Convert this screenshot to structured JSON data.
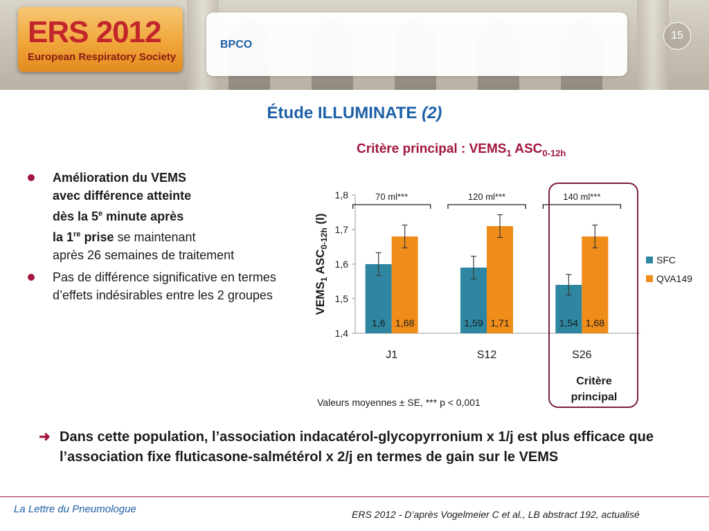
{
  "header": {
    "logo_title": "ERS 2012",
    "logo_subtitle": "European Respiratory Society",
    "section_label": "BPCO",
    "page_number": "15"
  },
  "slide": {
    "title": "Étude ILLUMINATE",
    "title_suffix": "(2)"
  },
  "bullets": [
    {
      "line1": "Amélioration du VEMS",
      "line2": "avec différence atteinte",
      "line3a": "dès la 5",
      "line3sup": "e",
      "line3b": " minute après",
      "line4a": "la 1",
      "line4sup": "re",
      "line4b": "  prise",
      "line4c": " se maintenant",
      "line5": "après 26 semaines de traitement"
    },
    {
      "text": "Pas de différence significative en termes d’effets indésirables entre les 2 groupes"
    }
  ],
  "chart_data": {
    "type": "bar",
    "title": "Critère principal : VEMS",
    "title_sub1": "1",
    "title_mid": " ASC",
    "title_sub2": "0-12h",
    "ylabel": "VEMS",
    "ylabel_sub1": "1",
    "ylabel_mid": " ASC",
    "ylabel_sub2": "0-12h",
    "ylabel_unit": " (l)",
    "categories": [
      "J1",
      "S12",
      "S26"
    ],
    "ylim": [
      1.4,
      1.8
    ],
    "yticks": [
      1.4,
      1.5,
      1.6,
      1.7,
      1.8
    ],
    "ytick_labels": [
      "1,4",
      "1,5",
      "1,6",
      "1,7",
      "1,8"
    ],
    "series": [
      {
        "name": "SFC",
        "color": "#2e86a0",
        "values": [
          1.6,
          1.59,
          1.54
        ],
        "errors": [
          0.033,
          0.033,
          0.03
        ],
        "labels": [
          "1,6",
          "1,59",
          "1,54"
        ]
      },
      {
        "name": "QVA149",
        "color": "#ef8c1a",
        "values": [
          1.68,
          1.71,
          1.68
        ],
        "errors": [
          0.033,
          0.033,
          0.033
        ],
        "labels": [
          "1,68",
          "1,71",
          "1,68"
        ]
      }
    ],
    "differences": [
      "70 ml***",
      "120 ml***",
      "140 ml***"
    ],
    "legend_position": "right",
    "grid": false
  },
  "annotations": {
    "note": "Valeurs moyennes ± SE, *** p < 0,001",
    "criterion_label_1": "Critère",
    "criterion_label_2": "principal"
  },
  "conclusion": {
    "arrow": "➜",
    "text": "Dans cette population, l’association indacatérol-glycopyrronium x 1/j est plus efficace que l’association fixe fluticasone-salmétérol x 2/j en termes de gain sur le VEMS"
  },
  "footer": {
    "left": "La Lettre du Pneumologue",
    "right": "ERS 2012 - D’après Vogelmeier C et al., LB abstract 192, actualisé"
  }
}
